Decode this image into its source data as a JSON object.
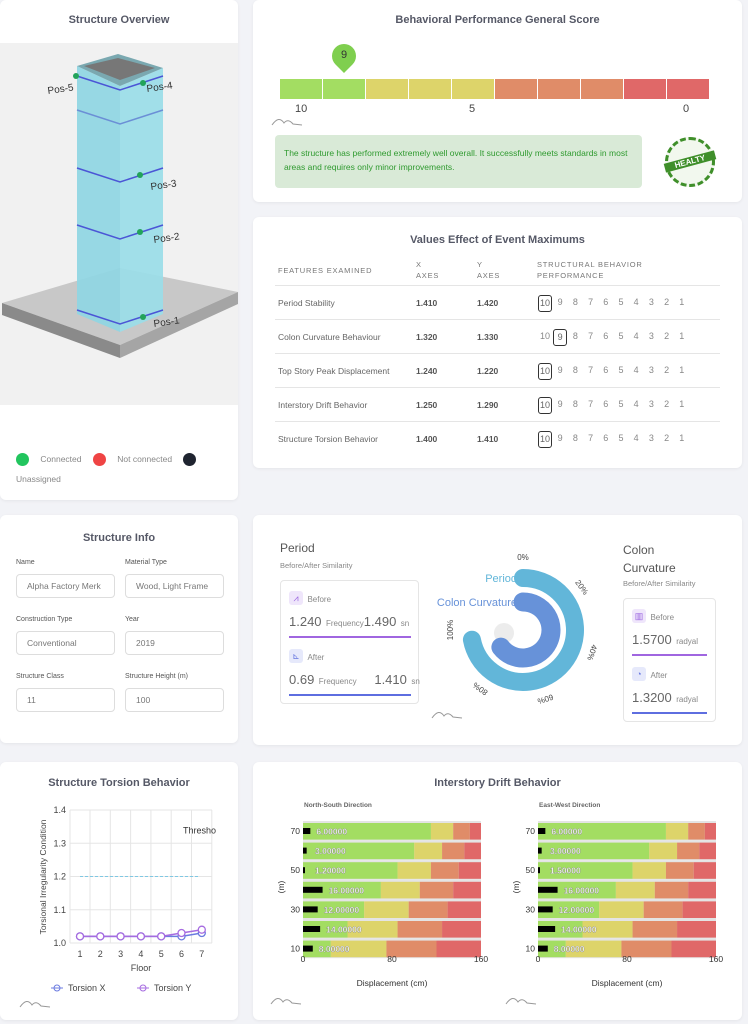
{
  "overview": {
    "title": "Structure Overview",
    "positions": [
      "Pos-1",
      "Pos-2",
      "Pos-3",
      "Pos-4",
      "Pos-5"
    ],
    "legend": [
      {
        "label": "Connected",
        "color": "#22c55e"
      },
      {
        "label": "Not connected",
        "color": "#ef4444"
      },
      {
        "label": "Unassigned",
        "color": "#1f2430"
      }
    ]
  },
  "score": {
    "title": "Behavioral Performance General Score",
    "value": 9,
    "value_label": "9",
    "scale_labels": [
      "10",
      "5",
      "0"
    ],
    "segment_colors": [
      "#a3dd62",
      "#a3dd62",
      "#ddd46a",
      "#ddd46a",
      "#ddd46a",
      "#e08c68",
      "#e08c68",
      "#e08c68",
      "#e06868",
      "#e06868"
    ],
    "message": "The structure has performed extremely well overall. It successfully meets standards in most areas and requires only minor improvements.",
    "badge": "HEALTY"
  },
  "table": {
    "title": "Values Effect of Event Maximums",
    "headers": [
      "FEATURES EXAMINED",
      "X AXES",
      "Y AXES",
      "STRUCTURAL BEHAVIOR PERFORMANCE"
    ],
    "ranks": [
      "10",
      "9",
      "8",
      "7",
      "6",
      "5",
      "4",
      "3",
      "2",
      "1"
    ],
    "rows": [
      {
        "feature": "Period Stability",
        "x": "1.410",
        "y": "1.420",
        "rating": 10
      },
      {
        "feature": "Colon Curvature Behaviour",
        "x": "1.320",
        "y": "1.330",
        "rating": 9
      },
      {
        "feature": "Top Story Peak Displacement",
        "x": "1.240",
        "y": "1.220",
        "rating": 10
      },
      {
        "feature": "Interstory Drift Behavior",
        "x": "1.250",
        "y": "1.290",
        "rating": 10
      },
      {
        "feature": "Structure Torsion Behavior",
        "x": "1.400",
        "y": "1.410",
        "rating": 10
      }
    ]
  },
  "info": {
    "title": "Structure Info",
    "fields": [
      {
        "label": "Name",
        "value": "Alpha Factory Merk"
      },
      {
        "label": "Material Type",
        "value": "Wood, Light Frame"
      },
      {
        "label": "Construction Type",
        "value": "Conventional"
      },
      {
        "label": "Year",
        "value": "2019"
      },
      {
        "label": "Structure Class",
        "value": "11"
      },
      {
        "label": "Structure Height (m)",
        "value": "100"
      }
    ]
  },
  "similarity": {
    "period": {
      "title": "Period",
      "subtitle": "Before/After Similarity",
      "before": {
        "label": "Before",
        "value": "1.240",
        "unit": "Frequency",
        "value2": "1.490",
        "unit2": "sn"
      },
      "after": {
        "label": "After",
        "value": "0.69",
        "unit": "Frequency",
        "value2": "1.410",
        "unit2": "sn"
      }
    },
    "colon": {
      "title": "Colon Curvature",
      "subtitle": "Before/After Similarity",
      "before": {
        "label": "Before",
        "value": "1.5700",
        "unit": "radyal"
      },
      "after": {
        "label": "After",
        "value": "1.3200",
        "unit": "radyal"
      }
    },
    "radial": {
      "type": "radial-bar",
      "ticks": [
        "0%",
        "20%",
        "40%",
        "60%",
        "80%",
        "100%"
      ],
      "series": [
        {
          "name": "Period",
          "value": 96,
          "color": "#62b6d9"
        },
        {
          "name": "Colon Curvature",
          "value": 86,
          "color": "#6792d9"
        }
      ]
    }
  },
  "chart_data": [
    {
      "type": "line",
      "title": "Structure Torsion Behavior",
      "xlabel": "Floor",
      "ylabel": "Torsional Irregularity Condition",
      "x": [
        1,
        2,
        3,
        4,
        5,
        6,
        7
      ],
      "ylim": [
        1.0,
        1.4
      ],
      "yticks": [
        "1.0",
        "1.1",
        "1.2",
        "1.3",
        "1.4"
      ],
      "grid": true,
      "legend": "bottom",
      "threshold": {
        "value": 1.2,
        "label": "Thresho"
      },
      "series": [
        {
          "name": "Torsion X",
          "values": [
            1.02,
            1.02,
            1.02,
            1.02,
            1.02,
            1.02,
            1.03
          ],
          "color": "#6b7be0"
        },
        {
          "name": "Torsion Y",
          "values": [
            1.02,
            1.02,
            1.02,
            1.02,
            1.02,
            1.03,
            1.04
          ],
          "color": "#a66be0"
        }
      ]
    },
    {
      "type": "bar",
      "title": "North-South Direction",
      "xlabel": "Displacement (cm)",
      "ylabel": "(m)",
      "xlim": [
        0,
        160
      ],
      "xticks": [
        "0",
        "80",
        "160"
      ],
      "categories": [
        70,
        60,
        50,
        40,
        30,
        20,
        10
      ],
      "ytick_labels": [
        "70",
        "",
        "50",
        "",
        "30",
        "",
        "10"
      ],
      "values": [
        6,
        3,
        1.2,
        16,
        12,
        14,
        8
      ],
      "labels": [
        "6.00000",
        "3.00000",
        "1.20000",
        "16.00000",
        "12.00000",
        "14.00000",
        "8.00000"
      ],
      "zones": [
        [
          115,
          135,
          150
        ],
        [
          100,
          125,
          145
        ],
        [
          85,
          115,
          140
        ],
        [
          70,
          105,
          135
        ],
        [
          55,
          95,
          130
        ],
        [
          40,
          85,
          125
        ],
        [
          25,
          75,
          120
        ]
      ],
      "zone_colors": [
        "#a3dd62",
        "#ddd46a",
        "#e08c68",
        "#e06868"
      ]
    },
    {
      "type": "bar",
      "title": "East-West Direction",
      "xlabel": "Displacement (cm)",
      "ylabel": "(m)",
      "xlim": [
        0,
        160
      ],
      "xticks": [
        "0",
        "80",
        "160"
      ],
      "categories": [
        70,
        60,
        50,
        40,
        30,
        20,
        10
      ],
      "ytick_labels": [
        "70",
        "",
        "50",
        "",
        "30",
        "",
        "10"
      ],
      "values": [
        6,
        3,
        1.5,
        16,
        12,
        14,
        8
      ],
      "labels": [
        "6.00000",
        "3.00000",
        "1.50000",
        "16.00000",
        "12.00000",
        "14.00000",
        "8.00000"
      ],
      "zones": [
        [
          115,
          135,
          150
        ],
        [
          100,
          125,
          145
        ],
        [
          85,
          115,
          140
        ],
        [
          70,
          105,
          135
        ],
        [
          55,
          95,
          130
        ],
        [
          40,
          85,
          125
        ],
        [
          25,
          75,
          120
        ]
      ],
      "zone_colors": [
        "#a3dd62",
        "#ddd46a",
        "#e08c68",
        "#e06868"
      ]
    }
  ],
  "drift": {
    "title": "Interstory Drift Behavior"
  }
}
